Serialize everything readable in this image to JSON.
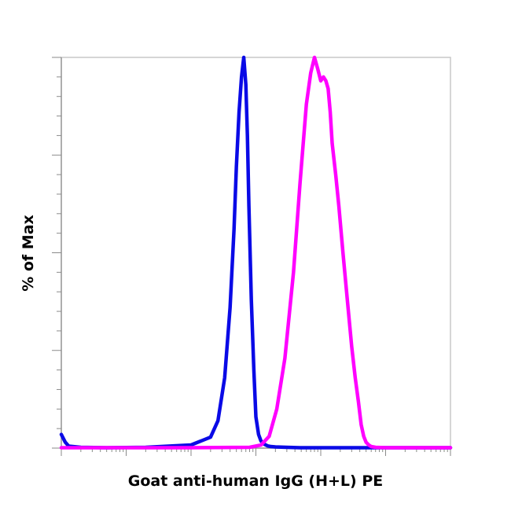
{
  "chart_data": {
    "type": "line",
    "title": "",
    "xlabel": "Goat anti-human IgG (H+L) PE",
    "ylabel": "% of Max",
    "x_scale": "log",
    "xlim": [
      1,
      1000000
    ],
    "ylim": [
      0,
      100
    ],
    "grid": false,
    "legend": "none",
    "series": [
      {
        "color": "#0a0ae6",
        "x": [
          1,
          1.15,
          1.3,
          2,
          5,
          20,
          100,
          200,
          260,
          330,
          400,
          460,
          500,
          550,
          600,
          650,
          700,
          740,
          780,
          850,
          930,
          1000,
          1100,
          1200,
          1350,
          1500,
          1700,
          2000,
          3000,
          5000,
          10000,
          100000,
          1000000
        ],
        "y": [
          3.5,
          1.5,
          0.5,
          0.2,
          0.1,
          0.2,
          0.8,
          2.8,
          7,
          18,
          36,
          56,
          72,
          86,
          95,
          100,
          93,
          80,
          62,
          38,
          20,
          8,
          3.5,
          1.8,
          1,
          0.6,
          0.4,
          0.3,
          0.2,
          0.1,
          0.1,
          0.1,
          0.1
        ]
      },
      {
        "color": "#ff00ff",
        "x": [
          1,
          100,
          800,
          1200,
          1600,
          2100,
          2800,
          3800,
          4800,
          6000,
          7000,
          8000,
          9000,
          10000,
          11000,
          12000,
          13000,
          14000,
          15000,
          17000,
          19000,
          22000,
          26000,
          30000,
          34000,
          38000,
          42000,
          46000,
          50000,
          55000,
          60000,
          70000,
          100000,
          1000000
        ],
        "y": [
          0.1,
          0.1,
          0.2,
          0.8,
          3,
          10,
          23,
          45,
          68,
          88,
          96,
          100,
          97,
          94,
          95,
          94,
          92,
          86,
          78,
          70,
          62,
          50,
          37,
          26,
          18,
          12,
          6,
          3,
          1.5,
          0.8,
          0.4,
          0.2,
          0.1,
          0.1
        ]
      }
    ]
  }
}
